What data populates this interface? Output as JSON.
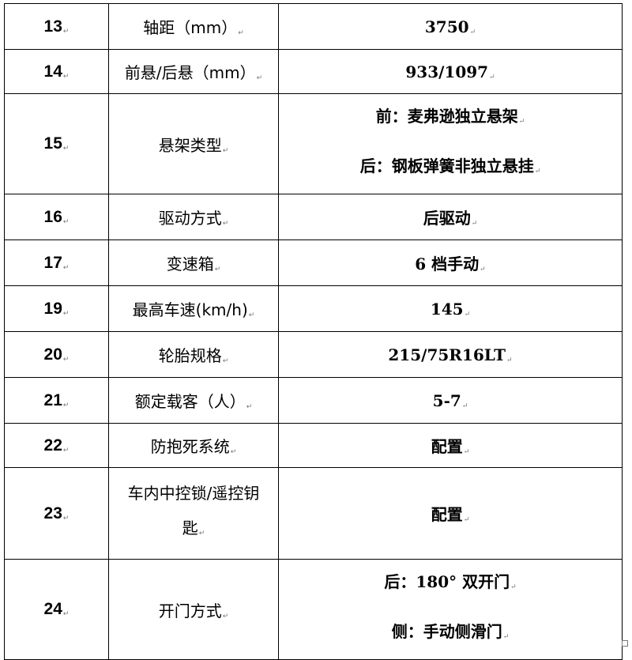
{
  "rows": [
    {
      "no": "13",
      "item": "轴距（mm）",
      "value": [
        "3750"
      ]
    },
    {
      "no": "14",
      "item": "前悬/后悬（mm）",
      "value": [
        "933/1097"
      ]
    },
    {
      "no": "15",
      "item": "悬架类型",
      "value": [
        "前：麦弗逊独立悬架",
        "后：钢板弹簧非独立悬挂"
      ]
    },
    {
      "no": "16",
      "item": "驱动方式",
      "value": [
        "后驱动"
      ]
    },
    {
      "no": "17",
      "item": "变速箱",
      "value": [
        "6 档手动"
      ]
    },
    {
      "no": "19",
      "item": "最高车速(km/h)",
      "value": [
        "145"
      ]
    },
    {
      "no": "20",
      "item": "轮胎规格",
      "value": [
        "215/75R16LT"
      ]
    },
    {
      "no": "21",
      "item": "额定载客（人）",
      "value": [
        "5-7"
      ]
    },
    {
      "no": "22",
      "item": "防抱死系统",
      "value": [
        "配置"
      ]
    },
    {
      "no": "23",
      "item": "车内中控锁/遥控钥匙",
      "value": [
        "配置"
      ]
    },
    {
      "no": "24",
      "item": "开门方式",
      "value": [
        "后：180° 双开门",
        "侧：手动侧滑门"
      ]
    }
  ]
}
